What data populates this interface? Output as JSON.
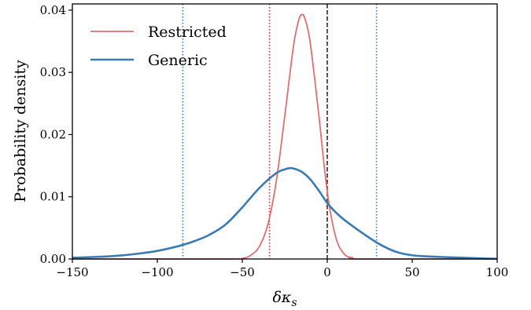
{
  "chart_data": {
    "type": "line",
    "xlabel": "δκ",
    "xlabel_subscript": "s",
    "ylabel": "Probability density",
    "xlim": [
      -150,
      100
    ],
    "ylim": [
      0,
      0.041
    ],
    "xticks": [
      -150,
      -100,
      -50,
      0,
      50,
      100
    ],
    "xtick_labels": [
      "−150",
      "−100",
      "−50",
      "0",
      "50",
      "100"
    ],
    "yticks": [
      0.0,
      0.01,
      0.02,
      0.03,
      0.04
    ],
    "ytick_labels": [
      "0.00",
      "0.01",
      "0.02",
      "0.03",
      "0.04"
    ],
    "legend_placement": "top-left",
    "grid": false,
    "series": [
      {
        "name": "Restricted",
        "color": "#e07070",
        "x": [
          -150,
          -60,
          -50,
          -45,
          -40,
          -35,
          -30,
          -25,
          -20,
          -17,
          -15,
          -13,
          -10,
          -5,
          0,
          5,
          10,
          15,
          20,
          100
        ],
        "y": [
          0,
          0,
          0.0001,
          0.0006,
          0.002,
          0.0055,
          0.0125,
          0.023,
          0.034,
          0.0382,
          0.0393,
          0.0385,
          0.0347,
          0.0232,
          0.0108,
          0.0035,
          0.0008,
          0.0002,
          0,
          0
        ]
      },
      {
        "name": "Generic",
        "color": "#3a7ab5",
        "x": [
          -150,
          -130,
          -120,
          -110,
          -100,
          -90,
          -80,
          -70,
          -60,
          -50,
          -40,
          -30,
          -25,
          -21,
          -15,
          -10,
          -5,
          0,
          5,
          10,
          20,
          30,
          40,
          50,
          60,
          70,
          80,
          90,
          100
        ],
        "y": [
          0.0002,
          0.0004,
          0.0006,
          0.0009,
          0.0013,
          0.0019,
          0.0027,
          0.0038,
          0.0055,
          0.0083,
          0.0114,
          0.0138,
          0.0144,
          0.0146,
          0.014,
          0.0128,
          0.011,
          0.009,
          0.0075,
          0.0063,
          0.0043,
          0.0025,
          0.0012,
          0.0006,
          0.0004,
          0.0003,
          0.0002,
          0.0001,
          3e-05
        ]
      }
    ],
    "vlines": [
      {
        "x": -34,
        "color": "#d62728",
        "style": "dotted"
      },
      {
        "x": 0,
        "color": "#d62728",
        "style": "dotted"
      },
      {
        "x": -85,
        "color": "#3a7ab5",
        "style": "dotted"
      },
      {
        "x": 29,
        "color": "#3a7ab5",
        "style": "dotted"
      },
      {
        "x": 0,
        "color": "#444444",
        "style": "dashed"
      }
    ]
  }
}
